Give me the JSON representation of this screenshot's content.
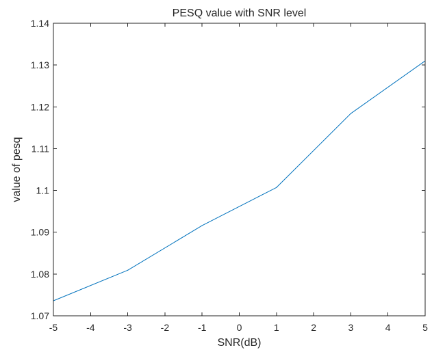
{
  "chart_data": {
    "type": "line",
    "title": "PESQ value with SNR level",
    "xlabel": "SNR(dB)",
    "ylabel": "value of pesq",
    "xlim": [
      -5,
      5
    ],
    "ylim": [
      1.07,
      1.14
    ],
    "x_ticks": [
      "-5",
      "-4",
      "-3",
      "-2",
      "-1",
      "0",
      "1",
      "2",
      "3",
      "4",
      "5"
    ],
    "y_ticks": [
      "1.07",
      "1.08",
      "1.09",
      "1.1",
      "1.11",
      "1.12",
      "1.13",
      "1.14"
    ],
    "grid": false,
    "legend": "none",
    "series": [
      {
        "color": "#0072BD",
        "x": [
          -5,
          -3,
          -1,
          1,
          3,
          5
        ],
        "y": [
          1.0736,
          1.0809,
          1.0916,
          1.1007,
          1.1184,
          1.131
        ]
      }
    ]
  }
}
